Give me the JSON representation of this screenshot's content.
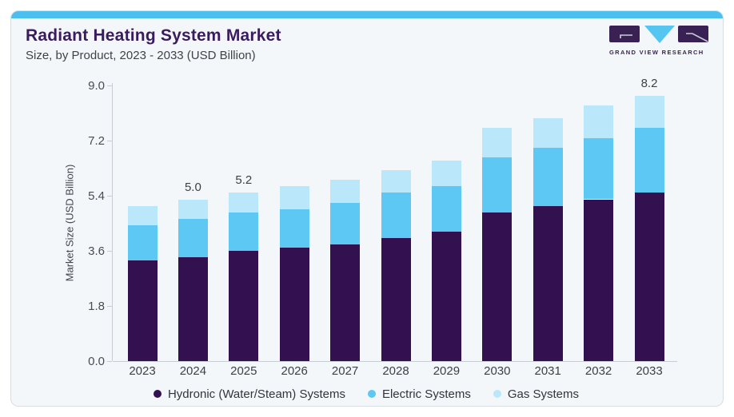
{
  "header": {
    "title": "Radiant Heating System Market",
    "subtitle": "Size, by Product, 2023 - 2033 (USD Billion)"
  },
  "logo": {
    "text": "GRAND VIEW RESEARCH"
  },
  "colors": {
    "accent_bar": "#4BBFEF",
    "card_background": "#F3F7FA",
    "title_purple": "#3A1B5D",
    "axis_line": "#C8CDD4",
    "hydronic": "#331150",
    "electric": "#5CC8F3",
    "gas": "#BAE7F9"
  },
  "chart_data": {
    "type": "bar",
    "stacked": true,
    "title": "Radiant Heating System Market",
    "subtitle": "Size, by Product, 2023 - 2033 (USD Billion)",
    "xlabel": "",
    "ylabel": "Market Size (USD Billion)",
    "ylim": [
      0,
      9.0
    ],
    "y_ticks": [
      "0.0",
      "1.8",
      "3.6",
      "5.4",
      "7.2",
      "9.0"
    ],
    "grid": false,
    "legend_position": "bottom",
    "categories": [
      2023,
      2024,
      2025,
      2026,
      2027,
      2028,
      2029,
      2030,
      2031,
      2032,
      2033
    ],
    "series": [
      {
        "name": "Hydronic (Water/Steam) Systems",
        "color": "#331150",
        "values": [
          3.1,
          3.2,
          3.4,
          3.5,
          3.6,
          3.8,
          4.0,
          4.6,
          4.8,
          5.0,
          5.2
        ]
      },
      {
        "name": "Electric Systems",
        "color": "#5CC8F3",
        "values": [
          1.1,
          1.2,
          1.2,
          1.2,
          1.3,
          1.4,
          1.4,
          1.7,
          1.8,
          1.9,
          2.0
        ]
      },
      {
        "name": "Gas Systems",
        "color": "#BAE7F9",
        "values": [
          0.6,
          0.6,
          0.6,
          0.7,
          0.7,
          0.7,
          0.8,
          0.9,
          0.9,
          1.0,
          1.0
        ]
      }
    ],
    "totals": [
      4.8,
      5.0,
      5.2,
      5.4,
      5.6,
      5.9,
      6.2,
      7.2,
      7.5,
      7.9,
      8.2
    ],
    "bar_labels": {
      "2024": "5.0",
      "2025": "5.2",
      "2033": "8.2"
    }
  }
}
